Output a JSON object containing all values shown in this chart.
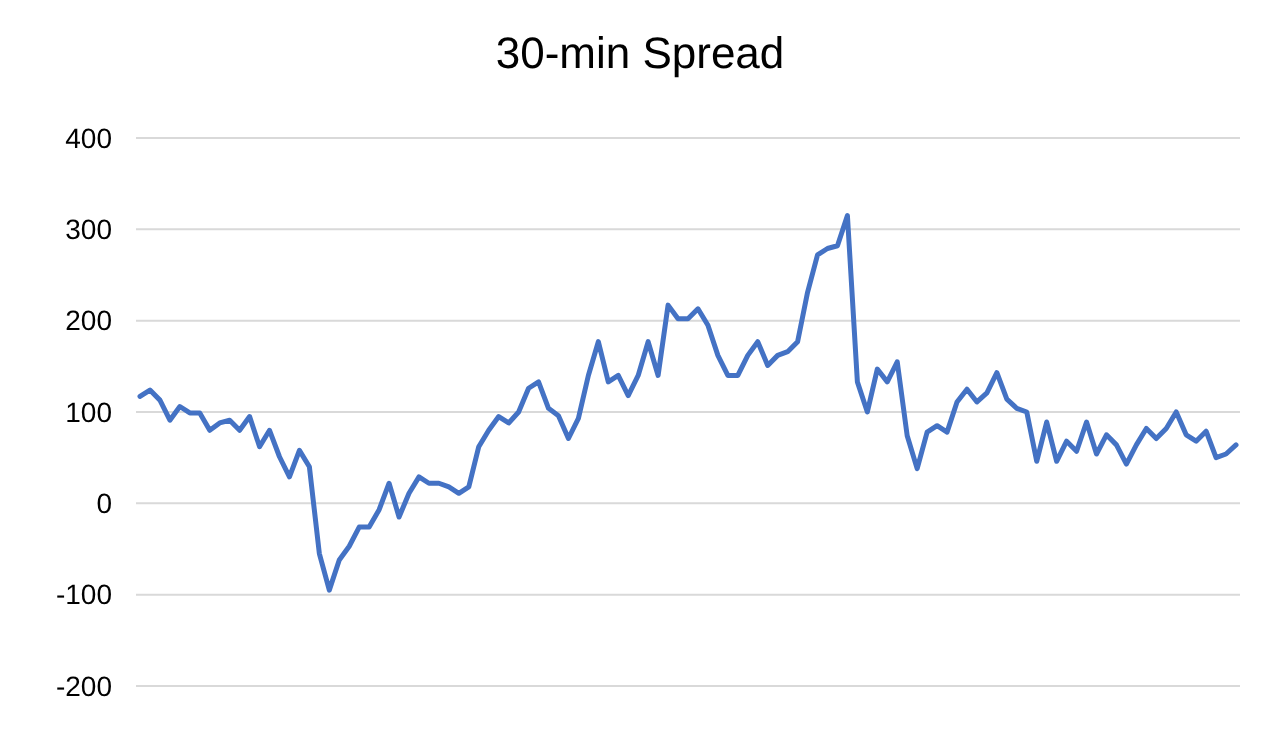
{
  "chart_data": {
    "type": "line",
    "title": "30-min Spread",
    "categories": [
      null,
      null,
      null,
      null,
      null,
      null,
      null,
      null,
      null,
      null,
      null,
      null,
      null,
      null,
      null,
      null,
      null,
      null,
      null,
      null,
      null,
      null,
      null,
      null,
      null,
      null,
      null,
      null,
      null,
      null,
      null,
      null,
      null,
      null,
      null,
      null,
      null,
      null,
      null,
      null,
      null,
      null,
      null,
      null,
      null,
      null,
      null,
      null,
      null,
      null,
      null,
      null,
      null,
      null,
      null,
      null,
      null,
      null,
      null,
      null,
      null,
      null,
      null,
      null,
      null,
      null,
      null,
      null,
      null,
      null,
      null,
      null,
      null,
      null,
      null,
      null,
      null,
      null,
      null,
      null,
      null,
      null,
      null,
      null,
      null,
      null,
      null,
      null,
      null,
      null,
      null,
      null,
      null,
      null,
      null,
      null,
      null,
      null,
      null,
      null,
      null,
      null,
      null,
      null,
      null,
      null,
      null,
      null,
      null,
      null,
      null
    ],
    "ylim": [
      -200,
      400
    ],
    "yticks": [
      -200,
      -100,
      0,
      100,
      200,
      300,
      400
    ],
    "grid": "y",
    "marker": "none",
    "line_style": "solid",
    "series": [
      {
        "color": "#4472c4",
        "values": [
          117,
          124,
          113,
          91,
          106,
          99,
          99,
          80,
          88,
          91,
          80,
          95,
          62,
          80,
          51,
          29,
          58,
          40,
          -55,
          -95,
          -62,
          -47,
          -26,
          -26,
          -7,
          22,
          -15,
          11,
          29,
          22,
          22,
          18,
          11,
          18,
          62,
          80,
          95,
          88,
          100,
          126,
          133,
          104,
          96,
          71,
          93,
          140,
          177,
          133,
          140,
          118,
          140,
          177,
          140,
          217,
          202,
          202,
          213,
          195,
          162,
          140,
          140,
          162,
          177,
          151,
          162,
          166,
          177,
          231,
          272,
          279,
          282,
          315,
          133,
          100,
          147,
          133,
          155,
          74,
          38,
          78,
          85,
          78,
          111,
          125,
          111,
          121,
          143,
          114,
          104,
          100,
          46,
          89,
          46,
          68,
          57,
          89,
          54,
          75,
          64,
          43,
          64,
          82,
          71,
          82,
          100,
          75,
          68,
          79,
          50,
          54,
          64
        ]
      }
    ]
  }
}
